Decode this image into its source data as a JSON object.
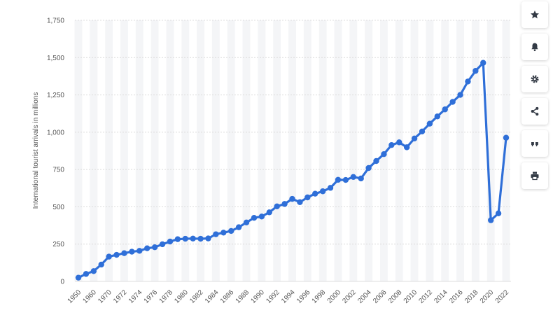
{
  "chart_data": {
    "type": "line",
    "title": "",
    "xlabel": "",
    "ylabel": "International tourist arrivals in millions",
    "ylim": [
      0,
      1750
    ],
    "y_ticks": [
      0,
      250,
      500,
      750,
      1000,
      1250,
      1500,
      1750
    ],
    "y_tick_labels": [
      "0",
      "250",
      "500",
      "750",
      "1,000",
      "1,250",
      "1,500",
      "1,750"
    ],
    "x_tick_labels": [
      "1950",
      "1960",
      "1970",
      "1972",
      "1974",
      "1976",
      "1978",
      "1980",
      "1982",
      "1984",
      "1986",
      "1988",
      "1990",
      "1992",
      "1994",
      "1996",
      "1998",
      "2000",
      "2002",
      "2004",
      "2006",
      "2008",
      "2010",
      "2012",
      "2014",
      "2016",
      "2018",
      "2020",
      "2022"
    ],
    "grid": "horizontal",
    "alternating_column_shading": true,
    "line_color": "#2f6fd8",
    "categories": [
      "1950",
      "1955",
      "1960",
      "1965",
      "1970",
      "1971",
      "1972",
      "1973",
      "1974",
      "1975",
      "1976",
      "1977",
      "1978",
      "1979",
      "1980",
      "1981",
      "1982",
      "1983",
      "1984",
      "1985",
      "1986",
      "1987",
      "1988",
      "1989",
      "1990",
      "1991",
      "1992",
      "1993",
      "1994",
      "1995",
      "1996",
      "1997",
      "1998",
      "1999",
      "2000",
      "2001",
      "2002",
      "2003",
      "2004",
      "2005",
      "2006",
      "2007",
      "2008",
      "2009",
      "2010",
      "2011",
      "2012",
      "2013",
      "2014",
      "2015",
      "2016",
      "2017",
      "2018",
      "2019",
      "2020",
      "2021",
      "2022"
    ],
    "series": [
      {
        "values": [
          25,
          50,
          69,
          113,
          166,
          178,
          189,
          199,
          205,
          222,
          229,
          249,
          267,
          283,
          286,
          287,
          286,
          288,
          316,
          327,
          338,
          363,
          395,
          426,
          435,
          463,
          503,
          519,
          553,
          531,
          563,
          588,
          604,
          627,
          681,
          680,
          700,
          690,
          760,
          807,
          853,
          914,
          932,
          899,
          958,
          1005,
          1057,
          1106,
          1153,
          1203,
          1250,
          1340,
          1411,
          1465,
          410,
          456,
          963
        ]
      }
    ]
  },
  "toolbar": {
    "buttons": [
      {
        "icon": "star-icon"
      },
      {
        "icon": "bell-icon"
      },
      {
        "icon": "gear-icon"
      },
      {
        "icon": "share-icon"
      },
      {
        "icon": "quote-icon"
      },
      {
        "icon": "print-icon"
      }
    ],
    "icon_color": "#333a45"
  }
}
